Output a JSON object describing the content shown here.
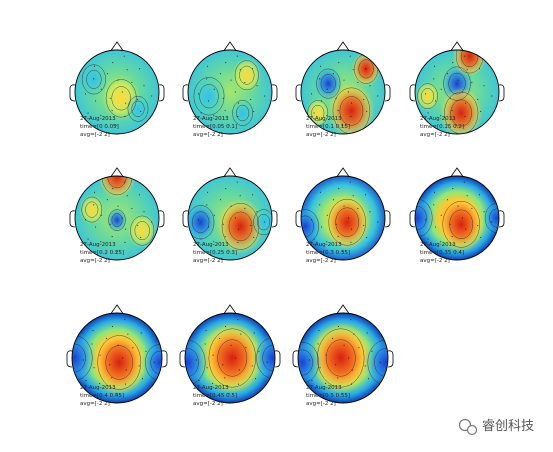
{
  "panels": [
    {
      "date": "27-Aug-2013",
      "time": "time=[0 0.05]",
      "avg": "avg=[-2 2]"
    },
    {
      "date": "27-Aug-2013",
      "time": "time=[0.05 0.1]",
      "avg": "avg=[-2 2]"
    },
    {
      "date": "27-Aug-2013",
      "time": "time=[0.1 0.15]",
      "avg": "avg=[-2 2]"
    },
    {
      "date": "27-Aug-2013",
      "time": "time=[0.15 0.2]",
      "avg": "avg=[-2 2]"
    },
    {
      "date": "27-Aug-2013",
      "time": "time=[0.2 0.25]",
      "avg": "avg=[-2 2]"
    },
    {
      "date": "27-Aug-2013",
      "time": "time=[0.25 0.3]",
      "avg": "avg=[-2 2]"
    },
    {
      "date": "27-Aug-2013",
      "time": "time=[0.3 0.35]",
      "avg": "avg=[-2 2]"
    },
    {
      "date": "27-Aug-2013",
      "time": "time=[0.35 0.4]",
      "avg": "avg=[-2 2]"
    },
    {
      "date": "27-Aug-2013",
      "time": "time=[0.4 0.45]",
      "avg": "avg=[-2 2]"
    },
    {
      "date": "27-Aug-2013",
      "time": "time=[0.45 0.5]",
      "avg": "avg=[-2 2]"
    },
    {
      "date": "27-Aug-2013",
      "time": "time=[0.5 0.55]",
      "avg": "avg=[-2 2]"
    }
  ],
  "watermark": "睿创科技"
}
